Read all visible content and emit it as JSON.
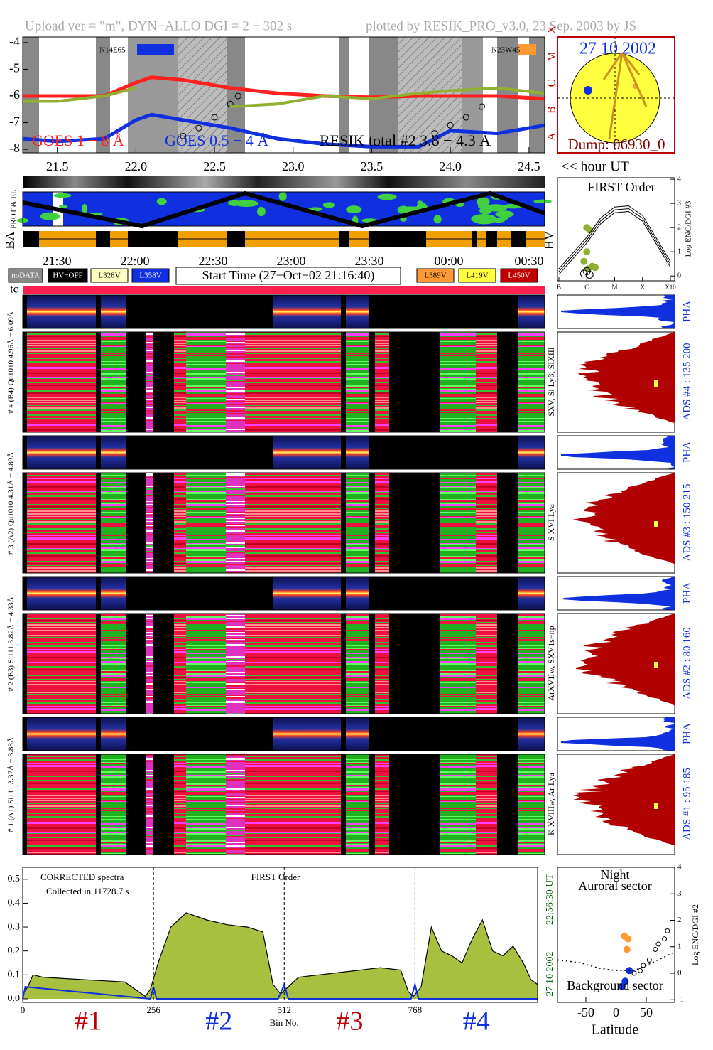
{
  "header": {
    "left": "Upload ver = \"m\", DYN−ALLO DGI =   2 ÷ 302 s",
    "right": "plotted by RESIK_PRO_v3.0, 23 Sep. 2003 by JS"
  },
  "sun": {
    "date": "27 10 2002",
    "dump": "Dump: 06930_0"
  },
  "panel_labels": {
    "prot": "PROT & EL",
    "ba": "BA",
    "hv": "HV",
    "tc": "tc"
  },
  "time_labels": [
    "21:30",
    "22:00",
    "22:30",
    "23:00",
    "23:30",
    "00:00",
    "00:30"
  ],
  "legend_boxes": [
    "noDATA",
    "HV−OFF",
    "L328V",
    "L358V",
    "L389V",
    "L419V",
    "L450V"
  ],
  "start_time": "Start Time (27−Oct−02 21:16:40)",
  "channels": [
    {
      "left": "# 4 (B4) Qu1010 4.96Å − 6.09Å",
      "pha": "PHA",
      "ads": "ADS #4 :   135 200",
      "lines": "SXV, Si Lyβ, SIXIII"
    },
    {
      "left": "# 3 (A2) Qu1010 4.31Å − 4.89Å",
      "pha": "PHA",
      "ads": "ADS #3 :   150 215",
      "lines": "S XVI Lya"
    },
    {
      "left": "# 2 (B3) Si111 3.82Å − 4.33Å",
      "pha": "PHA",
      "ads": "ADS #2 :   80 160",
      "lines": "ArXVIIw, SXV1s−np"
    },
    {
      "left": "# 1 (A1) Si111 3.37Å − 3.88Å",
      "pha": "PHA",
      "ads": "ADS #1 :   95 185",
      "lines": "K XVIIIw, Ar Lya"
    }
  ],
  "chart_data": [
    {
      "type": "line",
      "x_label": "<< hour UT",
      "xlim": [
        21.28,
        24.6
      ],
      "xticks": [
        21.5,
        {
          "value": 22,
          "label": "22.0"
        },
        22.5,
        {
          "value": 23,
          "label": "23.0"
        },
        23.5,
        {
          "value": 24,
          "label": "24.0"
        },
        24.5
      ],
      "ylim": [
        -8.13,
        -3.79
      ],
      "yticks": [
        -4,
        -5,
        -6,
        -7,
        -8
      ],
      "flare_classes": [
        "X",
        "M",
        "C",
        "B",
        "A"
      ],
      "annotations": [
        "N14E65",
        "N23W45"
      ],
      "series": [
        {
          "name": "GOES 1 − 8 Å",
          "color": "#ff2020",
          "x": [
            21.28,
            21.5,
            21.8,
            22.0,
            22.1,
            22.3,
            22.6,
            22.9,
            23.2,
            23.5,
            23.8,
            24.0,
            24.3,
            24.6
          ],
          "values": [
            -6.0,
            -6.0,
            -6.0,
            -5.5,
            -5.3,
            -5.4,
            -5.7,
            -5.9,
            -6.0,
            -6.05,
            -6.0,
            -6.0,
            -6.0,
            -6.1
          ]
        },
        {
          "name": "GOES 0.5 − 4 Å",
          "color": "#1030e0",
          "x": [
            21.28,
            21.5,
            21.8,
            22.0,
            22.1,
            22.3,
            22.6,
            22.9,
            23.2,
            23.5,
            23.8,
            24.0,
            24.3,
            24.6
          ],
          "values": [
            -7.6,
            -7.7,
            -7.6,
            -6.9,
            -6.7,
            -6.9,
            -7.2,
            -7.6,
            -7.8,
            -7.9,
            -7.9,
            -7.3,
            -7.4,
            -7.1
          ]
        },
        {
          "name": "RESIK total #2  3.8 − 4.3 Å",
          "color": "#000000",
          "marker": "circle",
          "x": [
            22.3,
            22.4,
            22.5,
            22.6,
            22.65,
            23.9,
            24.0,
            24.1,
            24.2
          ],
          "values": [
            -7.5,
            -7.2,
            -6.8,
            -6.3,
            -6.0,
            -7.4,
            -7.1,
            -6.8,
            -6.4
          ]
        },
        {
          "color": "#90b030",
          "x": [
            21.28,
            21.5,
            21.8,
            22.0,
            22.1,
            22.3,
            22.6,
            22.9,
            23.2,
            23.5,
            23.8,
            24.0,
            24.3,
            24.6
          ],
          "values": [
            -6.2,
            -6.2,
            -6.0,
            -5.7,
            null,
            null,
            -6.4,
            -6.3,
            -6.0,
            -6.1,
            -5.9,
            -5.8,
            -5.7,
            -5.9
          ]
        }
      ]
    },
    {
      "type": "scatter",
      "title": "FIRST Order",
      "y_label": "Log ENC/DGI #3",
      "xlim": [
        0,
        4
      ],
      "xticks": [
        {
          "value": 0,
          "label": "B"
        },
        {
          "value": 1,
          "label": "C"
        },
        {
          "value": 2,
          "label": "M"
        },
        {
          "value": 3,
          "label": "X"
        },
        {
          "value": 4,
          "label": "X10"
        }
      ],
      "ylim": [
        -0.2,
        4.06
      ],
      "yticks": [
        0,
        1,
        2,
        3,
        4
      ],
      "series": [
        {
          "color": "#90b030",
          "x": [
            1.0,
            1.1,
            1.0,
            0.9,
            1.05,
            1.2,
            1.3
          ],
          "values": [
            2.0,
            1.9,
            1.0,
            0.6,
            0.3,
            0.4,
            0.35
          ]
        },
        {
          "color": "#000000",
          "open": true,
          "x": [
            0.9,
            1.0,
            1.1
          ],
          "values": [
            0.1,
            0.2,
            0.05
          ]
        },
        {
          "color": "#000000",
          "line": true,
          "x": [
            0,
            1,
            1.5,
            2,
            2.5,
            3,
            4
          ],
          "values": [
            0.3,
            1.6,
            2.4,
            2.85,
            2.9,
            2.5,
            0.6
          ]
        }
      ]
    },
    {
      "type": "area",
      "title": "FIRST Order",
      "notes": [
        "CORRECTED spectra",
        "Collected in 11728.7 s"
      ],
      "x_label": "Bin No.",
      "region_labels": [
        "#1",
        "#2",
        "#3",
        "#4"
      ],
      "side_labels": [
        "27 10 2002",
        "22:56:30 UT"
      ],
      "xlim": [
        0,
        1008
      ],
      "xticks": [
        0,
        256,
        512,
        768
      ],
      "ylim": [
        -0.015,
        0.55
      ],
      "yticks": [
        {
          "value": 0,
          "label": "0.0"
        },
        0.1,
        0.2,
        0.3,
        0.4,
        0.5
      ],
      "series": [
        {
          "color": "#a8c040",
          "x": [
            0,
            10,
            20,
            40,
            80,
            120,
            160,
            200,
            240,
            250,
            265,
            290,
            320,
            360,
            400,
            440,
            470,
            490,
            505,
            520,
            540,
            580,
            620,
            660,
            700,
            740,
            755,
            765,
            780,
            800,
            820,
            840,
            860,
            880,
            900,
            920,
            940,
            960,
            980,
            995,
            1008
          ],
          "values": [
            0.02,
            0.05,
            0.1,
            0.09,
            0.085,
            0.08,
            0.075,
            0.07,
            0.01,
            0.04,
            0.15,
            0.3,
            0.36,
            0.33,
            0.31,
            0.3,
            0.28,
            0.06,
            0.02,
            0.05,
            0.09,
            0.1,
            0.11,
            0.12,
            0.13,
            0.12,
            0.03,
            0.01,
            0.05,
            0.3,
            0.2,
            0.18,
            0.15,
            0.25,
            0.33,
            0.2,
            0.18,
            0.22,
            0.15,
            0.08,
            0.06
          ]
        },
        {
          "color": "#1030e0",
          "x": [
            0,
            5,
            250,
            256,
            262,
            500,
            512,
            520,
            760,
            768,
            775,
            1008
          ],
          "values": [
            0,
            0.05,
            0,
            0.05,
            0,
            0,
            0.06,
            0,
            0,
            0.06,
            0,
            0
          ]
        }
      ]
    },
    {
      "type": "scatter",
      "title": "Night",
      "notes": [
        "Auroral sector",
        "Background sector"
      ],
      "x_label": "Latitude",
      "y_label": "Log ENC/DGI #2",
      "xlim": [
        -97,
        97
      ],
      "xticks": [
        -50,
        0,
        50
      ],
      "ylim": [
        -1.1,
        4.0
      ],
      "yticks": [
        -1,
        0,
        1,
        2,
        3,
        4
      ],
      "series": [
        {
          "color": "#ff9933",
          "x": [
            14,
            20,
            18
          ],
          "values": [
            1.4,
            1.3,
            0.9
          ]
        },
        {
          "color": "#1030e0",
          "x": [
            22,
            10,
            15
          ],
          "values": [
            0.1,
            -0.5,
            -0.3
          ]
        },
        {
          "color": "#000000",
          "open": true,
          "x": [
            30,
            40,
            45,
            55,
            65,
            70,
            80,
            85
          ],
          "values": [
            0.0,
            0.1,
            0.3,
            0.5,
            0.9,
            1.1,
            1.3,
            1.6
          ]
        },
        {
          "color": "#000000",
          "line": true,
          "dotted": true,
          "x": [
            -97,
            -60,
            -30,
            0,
            30,
            60,
            97
          ],
          "values": [
            0.5,
            0.4,
            0.2,
            0.1,
            0.1,
            0.4,
            0.8
          ]
        }
      ]
    }
  ]
}
